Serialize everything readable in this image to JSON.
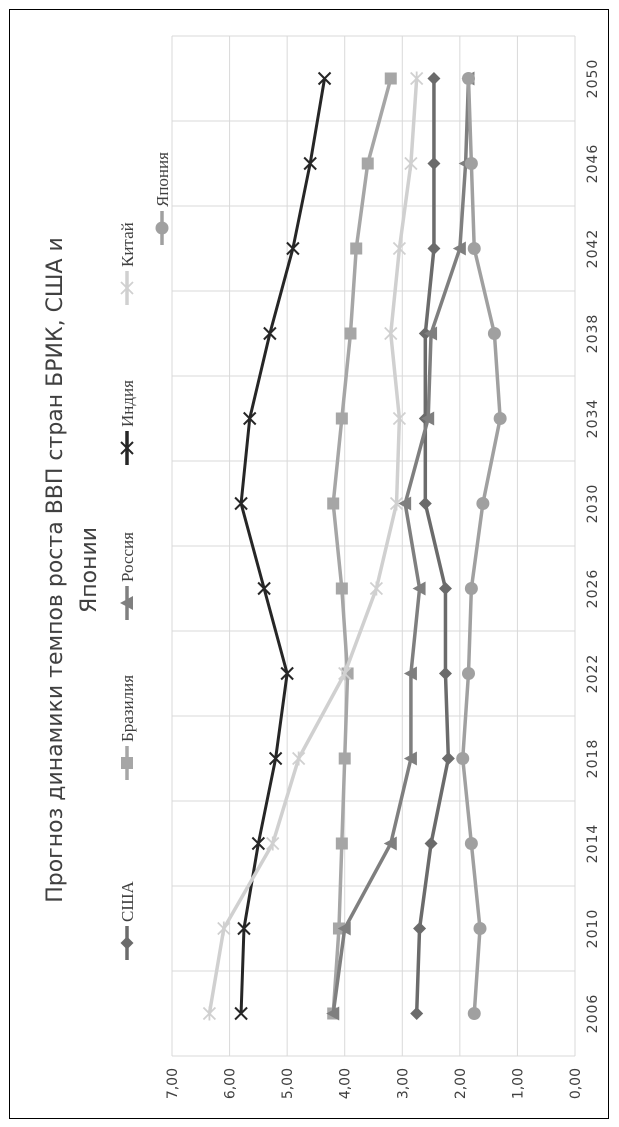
{
  "chart_data": {
    "type": "line",
    "title": "Прогноз динамики темпов роста ВВП стран БРИК, США и Японии",
    "title_lines": [
      "Прогноз динамики темпов роста ВВП стран БРИК, США и",
      "Японии"
    ],
    "categories": [
      "2006",
      "2010",
      "2014",
      "2018",
      "2022",
      "2026",
      "2030",
      "2034",
      "2038",
      "2042",
      "2046",
      "2050"
    ],
    "x_ticks": [
      "2006",
      "2010",
      "2014",
      "2018",
      "2022",
      "2026",
      "2030",
      "2034",
      "2038",
      "2042",
      "2046",
      "2050"
    ],
    "y_ticks": [
      "0,00",
      "1,00",
      "2,00",
      "3,00",
      "4,00",
      "5,00",
      "6,00",
      "7,00"
    ],
    "ylim": [
      0,
      7
    ],
    "grid": true,
    "legend_position": "top",
    "series": [
      {
        "name": "США",
        "marker": "diamond",
        "color": "#6b6b6b",
        "values": [
          2.75,
          2.7,
          2.5,
          2.2,
          2.25,
          2.25,
          2.6,
          2.6,
          2.6,
          2.45,
          2.45,
          2.45
        ]
      },
      {
        "name": "Бразилия",
        "marker": "square",
        "color": "#a6a6a6",
        "values": [
          4.2,
          4.1,
          4.05,
          4.0,
          3.95,
          4.05,
          4.2,
          4.05,
          3.9,
          3.8,
          3.6,
          3.2
        ]
      },
      {
        "name": "Россия",
        "marker": "triangle",
        "color": "#7f7f7f",
        "values": [
          4.2,
          4.0,
          3.2,
          2.85,
          2.85,
          2.7,
          2.95,
          2.55,
          2.5,
          2.0,
          1.9,
          1.85
        ]
      },
      {
        "name": "Индия",
        "marker": "x",
        "color": "#262626",
        "values": [
          5.8,
          5.75,
          5.5,
          5.2,
          5.0,
          5.4,
          5.8,
          5.65,
          5.3,
          4.9,
          4.6,
          4.35
        ]
      },
      {
        "name": "Китай",
        "marker": "asterisk",
        "color": "#d0d0d0",
        "values": [
          6.35,
          6.1,
          5.25,
          4.8,
          4.0,
          3.45,
          3.1,
          3.05,
          3.2,
          3.05,
          2.85,
          2.75
        ]
      },
      {
        "name": "Япония",
        "marker": "circle",
        "color": "#a0a0a0",
        "values": [
          1.75,
          1.65,
          1.8,
          1.95,
          1.85,
          1.8,
          1.6,
          1.3,
          1.4,
          1.75,
          1.8,
          1.85
        ]
      }
    ]
  }
}
